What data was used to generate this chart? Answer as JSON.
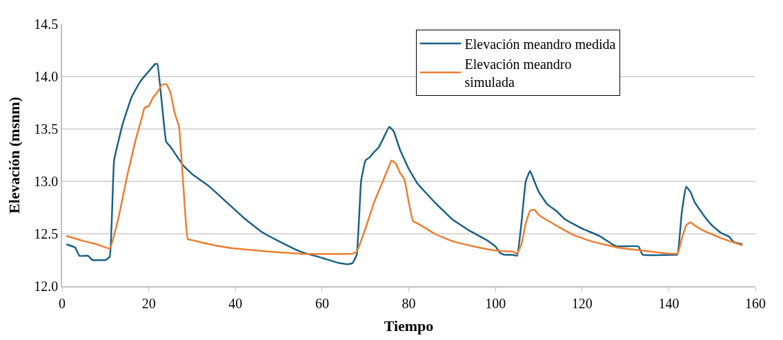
{
  "chart_data": {
    "type": "line",
    "xlabel": "Tiempo",
    "ylabel": "Elevación (msnm)",
    "xlim": [
      0,
      160
    ],
    "xticks": [
      0,
      20,
      40,
      60,
      80,
      100,
      120,
      140,
      160
    ],
    "ylim": [
      12.0,
      14.5
    ],
    "yticks": [
      {
        "value": 12.0,
        "label": "12.0"
      },
      {
        "value": 12.5,
        "label": "12.5"
      },
      {
        "value": 13.0,
        "label": "13.0"
      },
      {
        "value": 13.5,
        "label": "13.5"
      },
      {
        "value": 14.0,
        "label": "14.0"
      },
      {
        "value": 14.5,
        "label": "14.5"
      }
    ],
    "grid": "y",
    "legend": "top right",
    "marker": "none",
    "line_style": "solid",
    "series": [
      {
        "name": "Elevación meandro medida",
        "color": "#1b6185",
        "x": [
          1,
          3,
          4,
          6,
          7,
          10,
          11,
          12,
          14,
          16,
          18,
          20,
          21.5,
          22,
          24,
          25,
          28,
          30,
          34,
          38,
          42,
          46,
          50,
          55,
          60,
          64,
          66,
          67,
          68,
          69,
          70,
          71,
          72,
          73,
          74,
          75.5,
          76.5,
          78,
          80,
          82,
          86,
          90,
          94,
          98,
          100,
          101,
          102,
          104,
          105,
          106,
          107,
          108,
          109,
          110,
          112,
          114,
          116,
          120,
          124,
          127,
          128,
          133,
          134,
          141,
          142,
          143,
          144,
          145,
          146,
          148,
          150,
          152,
          154,
          155,
          157
        ],
        "values": [
          12.4,
          12.37,
          12.29,
          12.29,
          12.25,
          12.25,
          12.28,
          13.2,
          13.55,
          13.8,
          13.95,
          14.05,
          14.12,
          14.12,
          13.38,
          13.33,
          13.15,
          13.07,
          12.95,
          12.8,
          12.65,
          12.52,
          12.43,
          12.33,
          12.27,
          12.22,
          12.21,
          12.22,
          12.3,
          13.0,
          13.2,
          13.23,
          13.28,
          13.32,
          13.4,
          13.52,
          13.48,
          13.3,
          13.12,
          12.98,
          12.8,
          12.64,
          12.53,
          12.44,
          12.38,
          12.32,
          12.3,
          12.3,
          12.29,
          12.6,
          13.0,
          13.1,
          13.0,
          12.9,
          12.78,
          12.72,
          12.64,
          12.55,
          12.48,
          12.4,
          12.38,
          12.38,
          12.3,
          12.3,
          12.3,
          12.7,
          12.95,
          12.9,
          12.8,
          12.68,
          12.58,
          12.51,
          12.47,
          12.42,
          12.4
        ]
      },
      {
        "name": "Elevación meandro simulada",
        "color": "#ed7d31",
        "x": [
          1,
          5,
          8,
          11,
          13,
          15,
          17,
          18.5,
          19,
          20,
          21,
          22,
          23,
          24,
          25,
          26,
          27,
          28,
          29,
          30,
          33,
          38,
          45,
          55,
          67,
          68,
          70,
          72,
          74,
          75.5,
          76,
          77,
          78,
          79,
          80,
          81,
          82,
          86,
          90,
          95,
          100,
          104,
          105,
          106,
          107,
          108,
          109,
          110,
          114,
          118,
          122,
          128,
          134,
          142,
          143,
          144,
          145,
          146,
          148,
          152,
          157
        ],
        "values": [
          12.48,
          12.43,
          12.4,
          12.36,
          12.65,
          13.05,
          13.4,
          13.62,
          13.7,
          13.72,
          13.8,
          13.85,
          13.92,
          13.93,
          13.85,
          13.65,
          13.52,
          12.95,
          12.45,
          12.44,
          12.41,
          12.37,
          12.34,
          12.31,
          12.31,
          12.33,
          12.55,
          12.8,
          13.0,
          13.15,
          13.2,
          13.17,
          13.08,
          13.02,
          12.8,
          12.62,
          12.6,
          12.5,
          12.43,
          12.38,
          12.34,
          12.33,
          12.31,
          12.4,
          12.6,
          12.72,
          12.73,
          12.68,
          12.58,
          12.49,
          12.43,
          12.37,
          12.34,
          12.31,
          12.45,
          12.58,
          12.61,
          12.58,
          12.53,
          12.46,
          12.39
        ]
      }
    ]
  }
}
